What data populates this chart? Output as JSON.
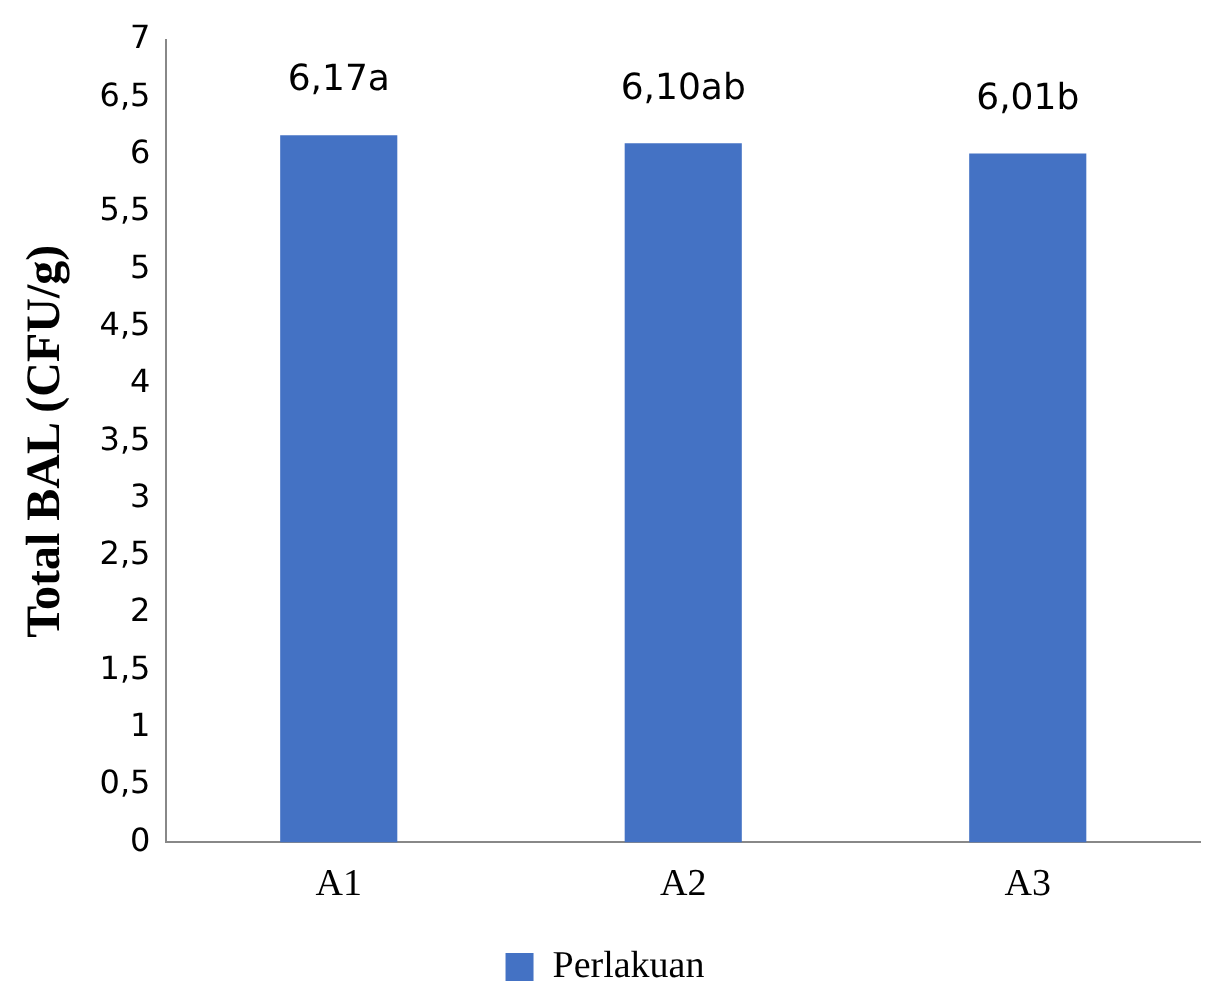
{
  "chart_data": {
    "type": "bar",
    "ylabel": "Total BAL (CFU/g)",
    "categories": [
      "A1",
      "A2",
      "A3"
    ],
    "series": [
      {
        "name": "Perlakuan",
        "color": "#4472c4",
        "values": [
          6.17,
          6.1,
          6.01
        ],
        "value_labels": [
          "6,17a",
          "6,10ab",
          "6,01b"
        ]
      }
    ],
    "ylim": [
      0,
      7
    ],
    "yticks": [
      0,
      {
        "value": 0.5,
        "label": "0,5"
      },
      1,
      {
        "value": 1.5,
        "label": "1,5"
      },
      2,
      {
        "value": 2.5,
        "label": "2,5"
      },
      3,
      {
        "value": 3.5,
        "label": "3,5"
      },
      4,
      {
        "value": 4.5,
        "label": "4,5"
      },
      5,
      {
        "value": 5.5,
        "label": "5,5"
      },
      6,
      {
        "value": 6.5,
        "label": "6,5"
      },
      7
    ],
    "grid": false,
    "legend": "bottom"
  }
}
